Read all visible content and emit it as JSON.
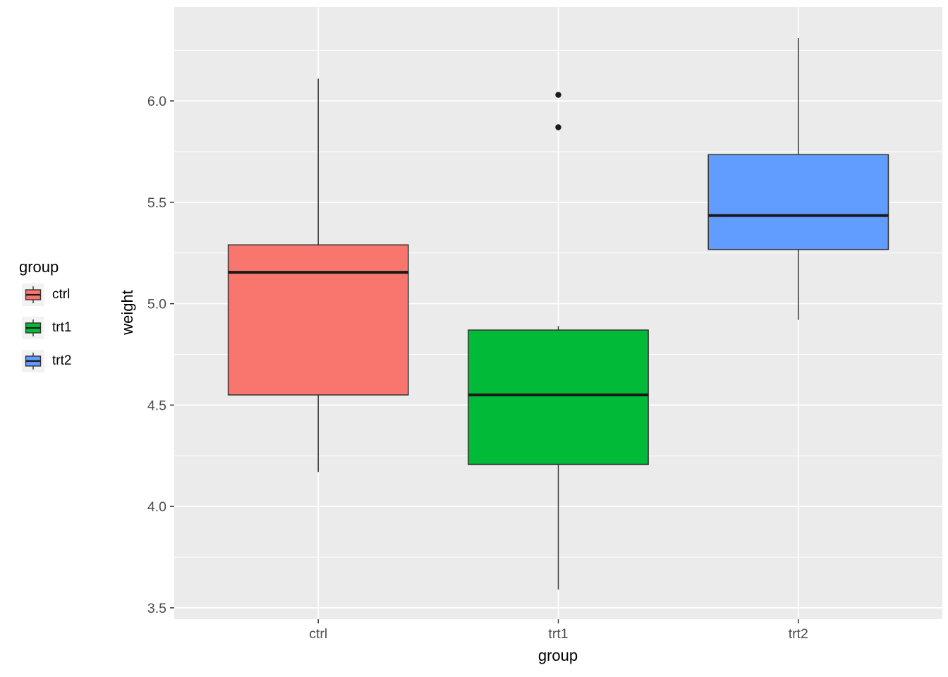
{
  "chart_data": {
    "type": "boxplot",
    "title": "",
    "xlabel": "group",
    "ylabel": "weight",
    "categories": [
      "ctrl",
      "trt1",
      "trt2"
    ],
    "xdomain": [
      0.4,
      3.6
    ],
    "ylim": [
      3.444,
      6.463
    ],
    "yticks": [
      3.5,
      4.0,
      4.5,
      5.0,
      5.5,
      6.0
    ],
    "ytick_labels": [
      "3.5",
      "4.0",
      "4.5",
      "5.0",
      "5.5",
      "6.0"
    ],
    "yminor": [
      3.75,
      4.25,
      4.75,
      5.25,
      5.75,
      6.25
    ],
    "series": [
      {
        "name": "ctrl",
        "color": "#F8766D",
        "lower_whisker": 4.17,
        "q1": 4.55,
        "median": 5.155,
        "q3": 5.29,
        "upper_whisker": 6.11,
        "outliers": []
      },
      {
        "name": "trt1",
        "color": "#00BA38",
        "lower_whisker": 3.59,
        "q1": 4.2075,
        "median": 4.55,
        "q3": 4.87,
        "upper_whisker": 4.89,
        "outliers": [
          5.87,
          6.03
        ]
      },
      {
        "name": "trt2",
        "color": "#619CFF",
        "lower_whisker": 4.92,
        "q1": 5.2675,
        "median": 5.435,
        "q3": 5.735,
        "upper_whisker": 6.31,
        "outliers": []
      }
    ],
    "legend": {
      "title": "group",
      "position": "left",
      "entries": [
        {
          "label": "ctrl",
          "color": "#F8766D"
        },
        {
          "label": "trt1",
          "color": "#00BA38"
        },
        {
          "label": "trt2",
          "color": "#619CFF"
        }
      ]
    },
    "panel_background": "#EBEBEB",
    "grid_color": "#FFFFFF",
    "tick_label_color": "#4D4D4D",
    "box_outline_color": "#333333"
  }
}
